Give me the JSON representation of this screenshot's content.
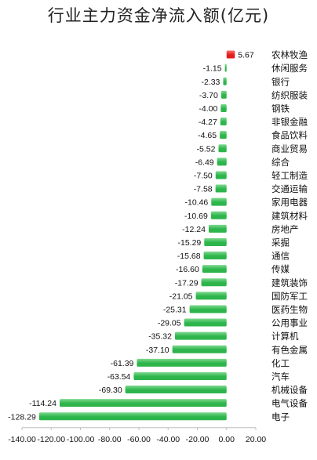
{
  "chart_data": {
    "type": "bar",
    "orientation": "horizontal",
    "title": "行业主力资金净流入额(亿元)",
    "categories": [
      "农林牧渔",
      "休闲服务",
      "银行",
      "纺织服装",
      "钢铁",
      "非银金融",
      "食品饮料",
      "商业贸易",
      "综合",
      "轻工制造",
      "交通运输",
      "家用电器",
      "建筑材料",
      "房地产",
      "采掘",
      "通信",
      "传媒",
      "建筑装饰",
      "国防军工",
      "医药生物",
      "公用事业",
      "计算机",
      "有色金属",
      "化工",
      "汽车",
      "机械设备",
      "电气设备",
      "电子"
    ],
    "values": [
      5.67,
      -1.15,
      -2.33,
      -3.7,
      -4.0,
      -4.27,
      -4.65,
      -5.52,
      -6.49,
      -7.5,
      -7.58,
      -10.46,
      -10.69,
      -12.24,
      -15.29,
      -15.68,
      -16.6,
      -17.29,
      -21.05,
      -25.31,
      -29.05,
      -35.32,
      -37.1,
      -61.39,
      -63.54,
      -69.3,
      -114.24,
      -128.29
    ],
    "value_labels": [
      "5.67",
      "-1.15",
      "-2.33",
      "-3.70",
      "-4.00",
      "-4.27",
      "-4.65",
      "-5.52",
      "-6.49",
      "-7.50",
      "-7.58",
      "-10.46",
      "-10.69",
      "-12.24",
      "-15.29",
      "-15.68",
      "-16.60",
      "-17.29",
      "-21.05",
      "-25.31",
      "-29.05",
      "-35.32",
      "-37.10",
      "-61.39",
      "-63.54",
      "-69.30",
      "-114.24",
      "-128.29"
    ],
    "x_ticks": [
      -140,
      -120,
      -100,
      -80,
      -60,
      -40,
      -20,
      0,
      20
    ],
    "x_tick_labels": [
      "-140.00",
      "-120.00",
      "-100.00",
      "-80.00",
      "-60.00",
      "-40.00",
      "-20.00",
      "0.00",
      "20.00"
    ],
    "xlim": [
      -140,
      20
    ],
    "grid": false,
    "legend": "none",
    "colors": {
      "positive": "#e41c1c",
      "negative": "#2db54c",
      "negative_light": "#7fd98f",
      "positive_light": "#ff6b6b"
    }
  }
}
